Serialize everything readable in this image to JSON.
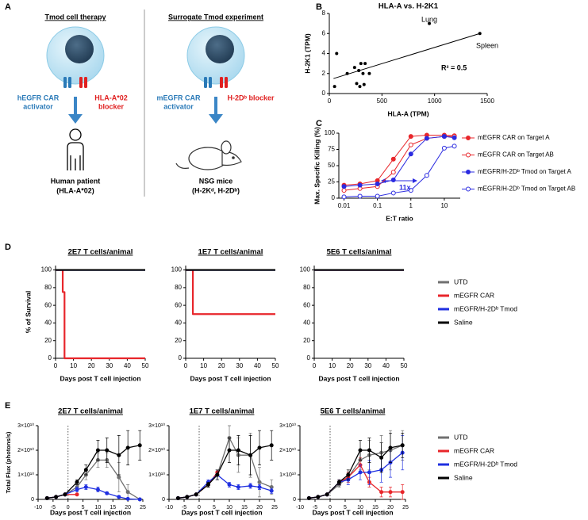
{
  "panel_labels": [
    "A",
    "B",
    "C",
    "D",
    "E"
  ],
  "diagram": {
    "left": {
      "heading": "Tmod cell therapy",
      "activator": [
        "hEGFR CAR",
        "activator"
      ],
      "blocker": [
        "HLA-A*02",
        "blocker"
      ],
      "subject": [
        "Human patient",
        "(HLA-A*02)"
      ]
    },
    "right": {
      "heading": "Surrogate Tmod experiment",
      "activator": [
        "mEGFR CAR",
        "activator"
      ],
      "blocker": [
        "H-2Dᵇ blocker"
      ],
      "subject": [
        "NSG mice",
        "(H-2Kᵈ, H-2Dᵇ)"
      ]
    }
  },
  "chart_data": [
    {
      "type": "scatter",
      "title": "HLA-A vs. H-2K1",
      "xlabel": "HLA-A (TPM)",
      "ylabel": "H-2K1 (TPM)",
      "xlim": [
        0,
        1500
      ],
      "ylim": [
        0,
        8
      ],
      "xticks": [
        0,
        500,
        1000,
        1500
      ],
      "yticks": [
        0,
        2,
        4,
        6,
        8
      ],
      "color": "#000000",
      "x": [
        50,
        70,
        170,
        240,
        260,
        280,
        300,
        320,
        340,
        380,
        290,
        330,
        950,
        1430
      ],
      "values": [
        0.7,
        4.0,
        2.0,
        2.6,
        1.0,
        2.3,
        3.0,
        2.0,
        3.0,
        2.0,
        0.7,
        0.9,
        7.0,
        6.0
      ],
      "trendline": {
        "x": [
          40,
          1430
        ],
        "values": [
          1.5,
          6.0
        ]
      },
      "annotations": [
        "Lung",
        "Spleen",
        "R² = 0.5"
      ]
    },
    {
      "type": "line",
      "xlabel": "E:T ratio",
      "ylabel": "Max. Specific Killing (%)",
      "xscale": "log",
      "xlim": [
        0.007,
        30
      ],
      "ylim": [
        0,
        100
      ],
      "xticks": [
        0.01,
        0.1,
        1,
        10
      ],
      "yticks": [
        0,
        25,
        50,
        75,
        100
      ],
      "legend": true,
      "markers": true,
      "x": [
        0.01,
        0.03,
        0.1,
        0.3,
        1,
        3,
        10,
        20
      ],
      "series": [
        {
          "name": "mEGFR CAR on Target A",
          "color": "#e8262b",
          "marker": "filled",
          "values": [
            20,
            22,
            27,
            60,
            95,
            97,
            97,
            96
          ]
        },
        {
          "name": "mEGFR CAR on Target AB",
          "color": "#e8262b",
          "marker": "open",
          "values": [
            12,
            15,
            18,
            40,
            82,
            92,
            95,
            95
          ]
        },
        {
          "name": "mEGFR/H-2Dᵇ Tmod on Target A",
          "color": "#2b2be0",
          "marker": "filled",
          "values": [
            18,
            20,
            22,
            28,
            68,
            92,
            95,
            93
          ]
        },
        {
          "name": "mEGFR/H-2Dᵇ Tmod on Target AB",
          "color": "#2b2be0",
          "marker": "open",
          "values": [
            2,
            3,
            3,
            8,
            12,
            35,
            77,
            80
          ]
        }
      ],
      "annotations": [
        "11x"
      ]
    },
    {
      "type": "line",
      "title": "2E7 T cells/animal",
      "xlabel": "Days post T cell injection",
      "ylabel": "% of Survival",
      "xlim": [
        0,
        50
      ],
      "ylim": [
        0,
        105
      ],
      "xticks": [
        0,
        10,
        20,
        30,
        40,
        50
      ],
      "yticks": [
        0,
        20,
        40,
        60,
        80,
        100
      ],
      "series": [
        {
          "color": "#707070",
          "x": [
            0,
            50
          ],
          "values": [
            100,
            100
          ]
        },
        {
          "color": "#e8262b",
          "x": [
            0,
            4,
            4,
            5,
            5,
            50
          ],
          "values": [
            100,
            100,
            75,
            75,
            0,
            0
          ]
        },
        {
          "color": "#1f2fe0",
          "x": [
            0,
            50
          ],
          "values": [
            100,
            100
          ]
        },
        {
          "color": "#000000",
          "x": [
            0,
            50
          ],
          "values": [
            100,
            100
          ]
        }
      ]
    },
    {
      "type": "line",
      "title": "1E7 T cells/animal",
      "xlabel": "Days post T cell injection",
      "xlim": [
        0,
        50
      ],
      "ylim": [
        0,
        105
      ],
      "xticks": [
        0,
        10,
        20,
        30,
        40,
        50
      ],
      "yticks": [
        0,
        20,
        40,
        60,
        80,
        100
      ],
      "series": [
        {
          "color": "#707070",
          "x": [
            0,
            50
          ],
          "values": [
            100,
            100
          ]
        },
        {
          "color": "#e8262b",
          "x": [
            0,
            4,
            4,
            50
          ],
          "values": [
            100,
            100,
            50,
            50
          ]
        },
        {
          "color": "#1f2fe0",
          "x": [
            0,
            50
          ],
          "values": [
            100,
            100
          ]
        },
        {
          "color": "#000000",
          "x": [
            0,
            50
          ],
          "values": [
            100,
            100
          ]
        }
      ]
    },
    {
      "type": "line",
      "title": "5E6 T cells/animal",
      "xlabel": "Days post T cell injection",
      "xlim": [
        0,
        50
      ],
      "ylim": [
        0,
        105
      ],
      "xticks": [
        0,
        10,
        20,
        30,
        40,
        50
      ],
      "yticks": [
        0,
        20,
        40,
        60,
        80,
        100
      ],
      "legend": true,
      "series": [
        {
          "name": "UTD",
          "color": "#707070",
          "x": [
            0,
            50
          ],
          "values": [
            100,
            100
          ]
        },
        {
          "name": "mEGFR CAR",
          "color": "#e8262b",
          "x": [
            0,
            50
          ],
          "values": [
            100,
            100
          ]
        },
        {
          "name": "mEGFR/H-2Dᵇ Tmod",
          "color": "#1f2fe0",
          "x": [
            0,
            50
          ],
          "values": [
            100,
            100
          ]
        },
        {
          "name": "Saline",
          "color": "#000000",
          "x": [
            0,
            50
          ],
          "values": [
            100,
            100
          ]
        }
      ]
    },
    {
      "type": "line",
      "title": "2E7 T cells/animal",
      "xlabel": "Days post T cell injection",
      "ylabel": "Total Flux (photons/s)",
      "xlim": [
        -10,
        25
      ],
      "ylim": [
        0,
        30000000000.0
      ],
      "xticks": [
        -10,
        -5,
        0,
        5,
        10,
        15,
        20,
        25
      ],
      "yticks": [
        0,
        {
          "value": 10000000000.0,
          "label": "1×10¹⁰"
        },
        {
          "value": 20000000000.0,
          "label": "2×10¹⁰"
        },
        {
          "value": 30000000000.0,
          "label": "3×10¹⁰"
        }
      ],
      "vline": 0,
      "markers": true,
      "x": [
        -7,
        -4,
        -1,
        3,
        6,
        10,
        13,
        17,
        20,
        24
      ],
      "series": [
        {
          "color": "#707070",
          "values": [
            500000000.0,
            1000000000.0,
            2000000000.0,
            5000000000.0,
            10000000000.0,
            16000000000.0,
            16000000000.0,
            9000000000.0,
            3000000000.0,
            0
          ],
          "errors": [
            0,
            0,
            0,
            1000000000.0,
            2000000000.0,
            3000000000.0,
            3000000000.0,
            6000000000.0,
            3000000000.0,
            0
          ]
        },
        {
          "color": "#e8262b",
          "values": [
            500000000.0,
            1000000000.0,
            2000000000.0,
            2000000000.0,
            null,
            null,
            null,
            null,
            null,
            null
          ]
        },
        {
          "color": "#1f2fe0",
          "values": [
            500000000.0,
            1000000000.0,
            2000000000.0,
            4000000000.0,
            5000000000.0,
            4000000000.0,
            2500000000.0,
            1000000000.0,
            200000000.0,
            0
          ],
          "errors": [
            0,
            0,
            0,
            1000000000.0,
            1000000000.0,
            1000000000.0,
            500000000.0,
            500000000.0,
            200000000.0,
            0
          ]
        },
        {
          "color": "#000000",
          "values": [
            500000000.0,
            1000000000.0,
            2000000000.0,
            7000000000.0,
            12000000000.0,
            20000000000.0,
            20000000000.0,
            18000000000.0,
            21000000000.0,
            22000000000.0
          ],
          "errors": [
            0,
            0,
            0,
            1000000000.0,
            2000000000.0,
            4000000000.0,
            5000000000.0,
            8000000000.0,
            7000000000.0,
            6000000000.0
          ]
        }
      ]
    },
    {
      "type": "line",
      "title": "1E7 T cells/animal",
      "xlabel": "Days post T cell injection",
      "xlim": [
        -10,
        25
      ],
      "ylim": [
        0,
        30000000000.0
      ],
      "xticks": [
        -10,
        -5,
        0,
        5,
        10,
        15,
        20,
        25
      ],
      "yticks": [
        0,
        {
          "value": 10000000000.0,
          "label": "1×10¹⁰"
        },
        {
          "value": 20000000000.0,
          "label": "2×10¹⁰"
        },
        {
          "value": 30000000000.0,
          "label": "3×10¹⁰"
        }
      ],
      "vline": 0,
      "markers": true,
      "x": [
        -7,
        -4,
        -1,
        3,
        6,
        10,
        13,
        17,
        20,
        24
      ],
      "series": [
        {
          "color": "#707070",
          "values": [
            500000000.0,
            1000000000.0,
            2000000000.0,
            6000000000.0,
            10000000000.0,
            25000000000.0,
            18000000000.0,
            18000000000.0,
            7000000000.0,
            5000000000.0
          ],
          "errors": [
            0,
            0,
            0,
            1000000000.0,
            2000000000.0,
            5000000000.0,
            7000000000.0,
            9000000000.0,
            6000000000.0,
            3000000000.0
          ]
        },
        {
          "color": "#e8262b",
          "values": [
            500000000.0,
            1000000000.0,
            2000000000.0,
            6000000000.0,
            11000000000.0,
            null,
            null,
            null,
            null,
            null
          ]
        },
        {
          "color": "#1f2fe0",
          "values": [
            500000000.0,
            1000000000.0,
            2000000000.0,
            7000000000.0,
            10000000000.0,
            6000000000.0,
            5000000000.0,
            5500000000.0,
            5000000000.0,
            3500000000.0
          ],
          "errors": [
            0,
            0,
            0,
            1000000000.0,
            2000000000.0,
            1000000000.0,
            1000000000.0,
            1000000000.0,
            1000000000.0,
            1000000000.0
          ]
        },
        {
          "color": "#000000",
          "values": [
            500000000.0,
            1000000000.0,
            2000000000.0,
            6000000000.0,
            10000000000.0,
            20000000000.0,
            20000000000.0,
            18000000000.0,
            21000000000.0,
            22000000000.0
          ],
          "errors": [
            0,
            0,
            0,
            1000000000.0,
            2000000000.0,
            5000000000.0,
            6000000000.0,
            8000000000.0,
            7000000000.0,
            6000000000.0
          ]
        }
      ]
    },
    {
      "type": "line",
      "title": "5E6 T cells/animal",
      "xlabel": "Days post T cell injection",
      "xlim": [
        -10,
        25
      ],
      "ylim": [
        0,
        30000000000.0
      ],
      "xticks": [
        -10,
        -5,
        0,
        5,
        10,
        15,
        20,
        25
      ],
      "yticks": [
        0,
        {
          "value": 10000000000.0,
          "label": "1×10¹⁰"
        },
        {
          "value": 20000000000.0,
          "label": "2×10¹⁰"
        },
        {
          "value": 30000000000.0,
          "label": "3×10¹⁰"
        }
      ],
      "vline": 0,
      "markers": true,
      "legend": true,
      "x": [
        -7,
        -4,
        -1,
        3,
        6,
        10,
        13,
        17,
        20,
        24
      ],
      "series": [
        {
          "name": "UTD",
          "color": "#707070",
          "values": [
            500000000.0,
            1000000000.0,
            2000000000.0,
            6000000000.0,
            9000000000.0,
            16000000000.0,
            18000000000.0,
            19000000000.0,
            20000000000.0,
            22000000000.0
          ],
          "errors": [
            0,
            0,
            0,
            1000000000.0,
            2000000000.0,
            4000000000.0,
            6000000000.0,
            7000000000.0,
            8000000000.0,
            6000000000.0
          ]
        },
        {
          "name": "mEGFR CAR",
          "color": "#e8262b",
          "values": [
            500000000.0,
            1000000000.0,
            2000000000.0,
            7000000000.0,
            9000000000.0,
            14000000000.0,
            7000000000.0,
            3000000000.0,
            3000000000.0,
            3000000000.0
          ],
          "errors": [
            0,
            0,
            0,
            1000000000.0,
            2000000000.0,
            3000000000.0,
            2000000000.0,
            2000000000.0,
            2000000000.0,
            3000000000.0
          ]
        },
        {
          "name": "mEGFR/H-2Dᵇ Tmod",
          "color": "#1f2fe0",
          "values": [
            500000000.0,
            1000000000.0,
            2000000000.0,
            7000000000.0,
            8000000000.0,
            11000000000.0,
            11000000000.0,
            12000000000.0,
            15000000000.0,
            19000000000.0
          ],
          "errors": [
            0,
            0,
            0,
            1000000000.0,
            2000000000.0,
            3000000000.0,
            5000000000.0,
            5000000000.0,
            6000000000.0,
            7000000000.0
          ]
        },
        {
          "name": "Saline",
          "color": "#000000",
          "values": [
            500000000.0,
            1000000000.0,
            2000000000.0,
            7000000000.0,
            10000000000.0,
            20000000000.0,
            20000000000.0,
            17000000000.0,
            21000000000.0,
            22000000000.0
          ],
          "errors": [
            0,
            0,
            0,
            1000000000.0,
            2000000000.0,
            4000000000.0,
            5000000000.0,
            6000000000.0,
            6000000000.0,
            5000000000.0
          ]
        }
      ]
    }
  ]
}
